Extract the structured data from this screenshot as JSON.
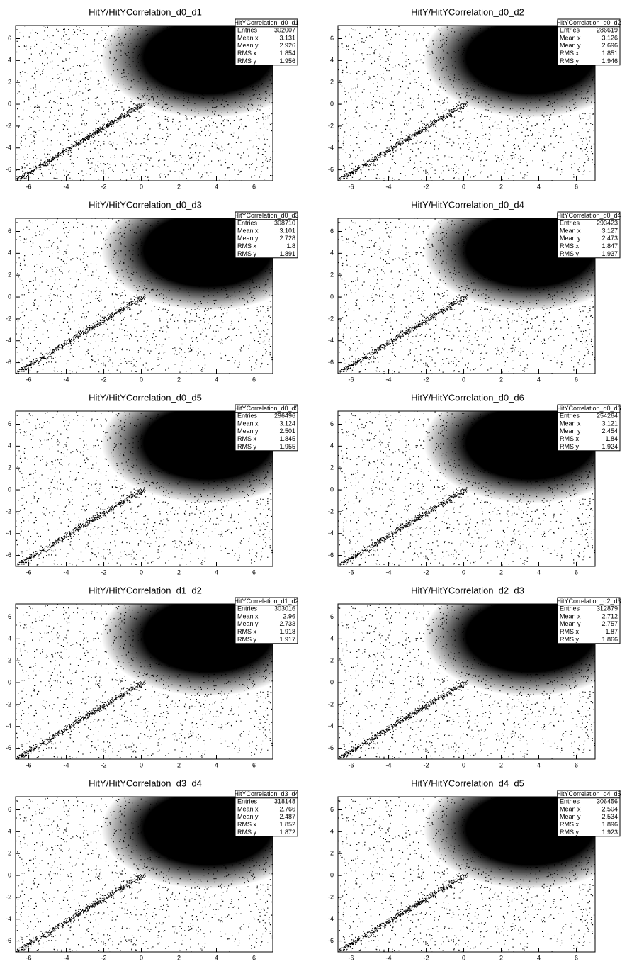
{
  "chart_data": [
    {
      "type": "hist2d",
      "title": "HitY/HitYCorrelation_d0_d1",
      "xlim": [
        -6.7,
        7
      ],
      "ylim": [
        -7,
        7.2
      ],
      "xticks": [
        -6,
        -4,
        -2,
        0,
        2,
        4,
        6
      ],
      "yticks": [
        -6,
        -4,
        -2,
        0,
        2,
        4,
        6
      ],
      "stats": {
        "name": "HitYCorrelation_d0_d1",
        "rows": [
          [
            "Entries",
            302007
          ],
          [
            "Mean x",
            3.131
          ],
          [
            "Mean y",
            2.926
          ],
          [
            "RMS x",
            1.854
          ],
          [
            "RMS y",
            1.956
          ]
        ]
      }
    },
    {
      "type": "hist2d",
      "title": "HitY/HitYCorrelation_d0_d2",
      "xlim": [
        -6.7,
        7
      ],
      "ylim": [
        -7,
        7.2
      ],
      "xticks": [
        -6,
        -4,
        -2,
        0,
        2,
        4,
        6
      ],
      "yticks": [
        -6,
        -4,
        -2,
        0,
        2,
        4,
        6
      ],
      "stats": {
        "name": "HitYCorrelation_d0_d2",
        "rows": [
          [
            "Entries",
            286619
          ],
          [
            "Mean x",
            3.126
          ],
          [
            "Mean y",
            2.696
          ],
          [
            "RMS x",
            1.851
          ],
          [
            "RMS y",
            1.946
          ]
        ]
      }
    },
    {
      "type": "hist2d",
      "title": "HitY/HitYCorrelation_d0_d3",
      "xlim": [
        -6.7,
        7
      ],
      "ylim": [
        -7,
        7.2
      ],
      "xticks": [
        -6,
        -4,
        -2,
        0,
        2,
        4,
        6
      ],
      "yticks": [
        -6,
        -4,
        -2,
        0,
        2,
        4,
        6
      ],
      "stats": {
        "name": "HitYCorrelation_d0_d3",
        "rows": [
          [
            "Entries",
            308710
          ],
          [
            "Mean x",
            3.101
          ],
          [
            "Mean y",
            2.728
          ],
          [
            "RMS x",
            1.8
          ],
          [
            "RMS y",
            1.891
          ]
        ]
      }
    },
    {
      "type": "hist2d",
      "title": "HitY/HitYCorrelation_d0_d4",
      "xlim": [
        -6.7,
        7
      ],
      "ylim": [
        -7,
        7.2
      ],
      "xticks": [
        -6,
        -4,
        -2,
        0,
        2,
        4,
        6
      ],
      "yticks": [
        -6,
        -4,
        -2,
        0,
        2,
        4,
        6
      ],
      "stats": {
        "name": "HitYCorrelation_d0_d4",
        "rows": [
          [
            "Entries",
            293423
          ],
          [
            "Mean x",
            3.127
          ],
          [
            "Mean y",
            2.473
          ],
          [
            "RMS x",
            1.847
          ],
          [
            "RMS y",
            1.937
          ]
        ]
      }
    },
    {
      "type": "hist2d",
      "title": "HitY/HitYCorrelation_d0_d5",
      "xlim": [
        -6.7,
        7
      ],
      "ylim": [
        -7,
        7.2
      ],
      "xticks": [
        -6,
        -4,
        -2,
        0,
        2,
        4,
        6
      ],
      "yticks": [
        -6,
        -4,
        -2,
        0,
        2,
        4,
        6
      ],
      "stats": {
        "name": "HitYCorrelation_d0_d5",
        "rows": [
          [
            "Entries",
            296496
          ],
          [
            "Mean x",
            3.124
          ],
          [
            "Mean y",
            2.501
          ],
          [
            "RMS x",
            1.845
          ],
          [
            "RMS y",
            1.955
          ]
        ]
      }
    },
    {
      "type": "hist2d",
      "title": "HitY/HitYCorrelation_d0_d6",
      "xlim": [
        -6.7,
        7
      ],
      "ylim": [
        -7,
        7.2
      ],
      "xticks": [
        -6,
        -4,
        -2,
        0,
        2,
        4,
        6
      ],
      "yticks": [
        -6,
        -4,
        -2,
        0,
        2,
        4,
        6
      ],
      "stats": {
        "name": "HitYCorrelation_d0_d6",
        "rows": [
          [
            "Entries",
            254264
          ],
          [
            "Mean x",
            3.121
          ],
          [
            "Mean y",
            2.454
          ],
          [
            "RMS x",
            1.84
          ],
          [
            "RMS y",
            1.924
          ]
        ]
      }
    },
    {
      "type": "hist2d",
      "title": "HitY/HitYCorrelation_d1_d2",
      "xlim": [
        -6.7,
        7
      ],
      "ylim": [
        -7,
        7.2
      ],
      "xticks": [
        -6,
        -4,
        -2,
        0,
        2,
        4,
        6
      ],
      "yticks": [
        -6,
        -4,
        -2,
        0,
        2,
        4,
        6
      ],
      "stats": {
        "name": "HitYCorrelation_d1_d2",
        "rows": [
          [
            "Entries",
            303016
          ],
          [
            "Mean x",
            2.96
          ],
          [
            "Mean y",
            2.733
          ],
          [
            "RMS x",
            1.918
          ],
          [
            "RMS y",
            1.917
          ]
        ]
      }
    },
    {
      "type": "hist2d",
      "title": "HitY/HitYCorrelation_d2_d3",
      "xlim": [
        -6.7,
        7
      ],
      "ylim": [
        -7,
        7.2
      ],
      "xticks": [
        -6,
        -4,
        -2,
        0,
        2,
        4,
        6
      ],
      "yticks": [
        -6,
        -4,
        -2,
        0,
        2,
        4,
        6
      ],
      "stats": {
        "name": "HitYCorrelation_d2_d3",
        "rows": [
          [
            "Entries",
            312879
          ],
          [
            "Mean x",
            2.712
          ],
          [
            "Mean y",
            2.757
          ],
          [
            "RMS x",
            1.87
          ],
          [
            "RMS y",
            1.866
          ]
        ]
      }
    },
    {
      "type": "hist2d",
      "title": "HitY/HitYCorrelation_d3_d4",
      "xlim": [
        -6.7,
        7
      ],
      "ylim": [
        -7,
        7.2
      ],
      "xticks": [
        -6,
        -4,
        -2,
        0,
        2,
        4,
        6
      ],
      "yticks": [
        -6,
        -4,
        -2,
        0,
        2,
        4,
        6
      ],
      "stats": {
        "name": "HitYCorrelation_d3_d4",
        "rows": [
          [
            "Entries",
            318148
          ],
          [
            "Mean x",
            2.766
          ],
          [
            "Mean y",
            2.487
          ],
          [
            "RMS x",
            1.852
          ],
          [
            "RMS y",
            1.872
          ]
        ]
      }
    },
    {
      "type": "hist2d",
      "title": "HitY/HitYCorrelation_d4_d5",
      "xlim": [
        -6.7,
        7
      ],
      "ylim": [
        -7,
        7.2
      ],
      "xticks": [
        -6,
        -4,
        -2,
        0,
        2,
        4,
        6
      ],
      "yticks": [
        -6,
        -4,
        -2,
        0,
        2,
        4,
        6
      ],
      "stats": {
        "name": "HitYCorrelation_d4_d5",
        "rows": [
          [
            "Entries",
            306456
          ],
          [
            "Mean x",
            2.504
          ],
          [
            "Mean y",
            2.534
          ],
          [
            "RMS x",
            1.896
          ],
          [
            "RMS y",
            1.923
          ]
        ]
      }
    }
  ]
}
